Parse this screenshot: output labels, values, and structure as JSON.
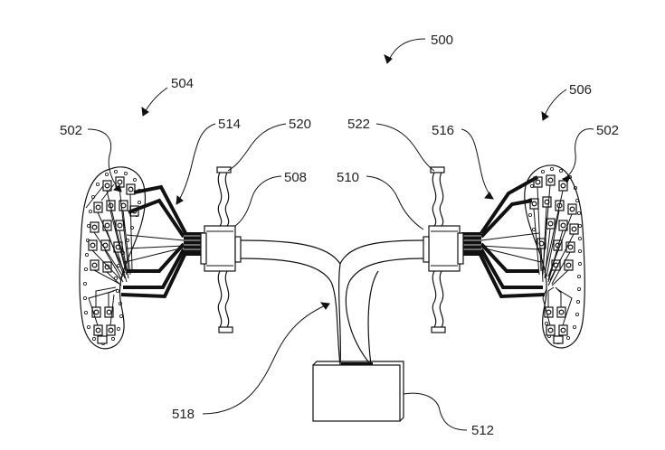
{
  "figure": {
    "labels": {
      "l500": "500",
      "l504": "504",
      "l506": "506",
      "l502_left": "502",
      "l502_right": "502",
      "l514": "514",
      "l520": "520",
      "l522": "522",
      "l516": "516",
      "l508": "508",
      "l510": "510",
      "l518": "518",
      "l512": "512"
    },
    "colors": {
      "ink": "#111111",
      "paper": "#ffffff"
    }
  }
}
